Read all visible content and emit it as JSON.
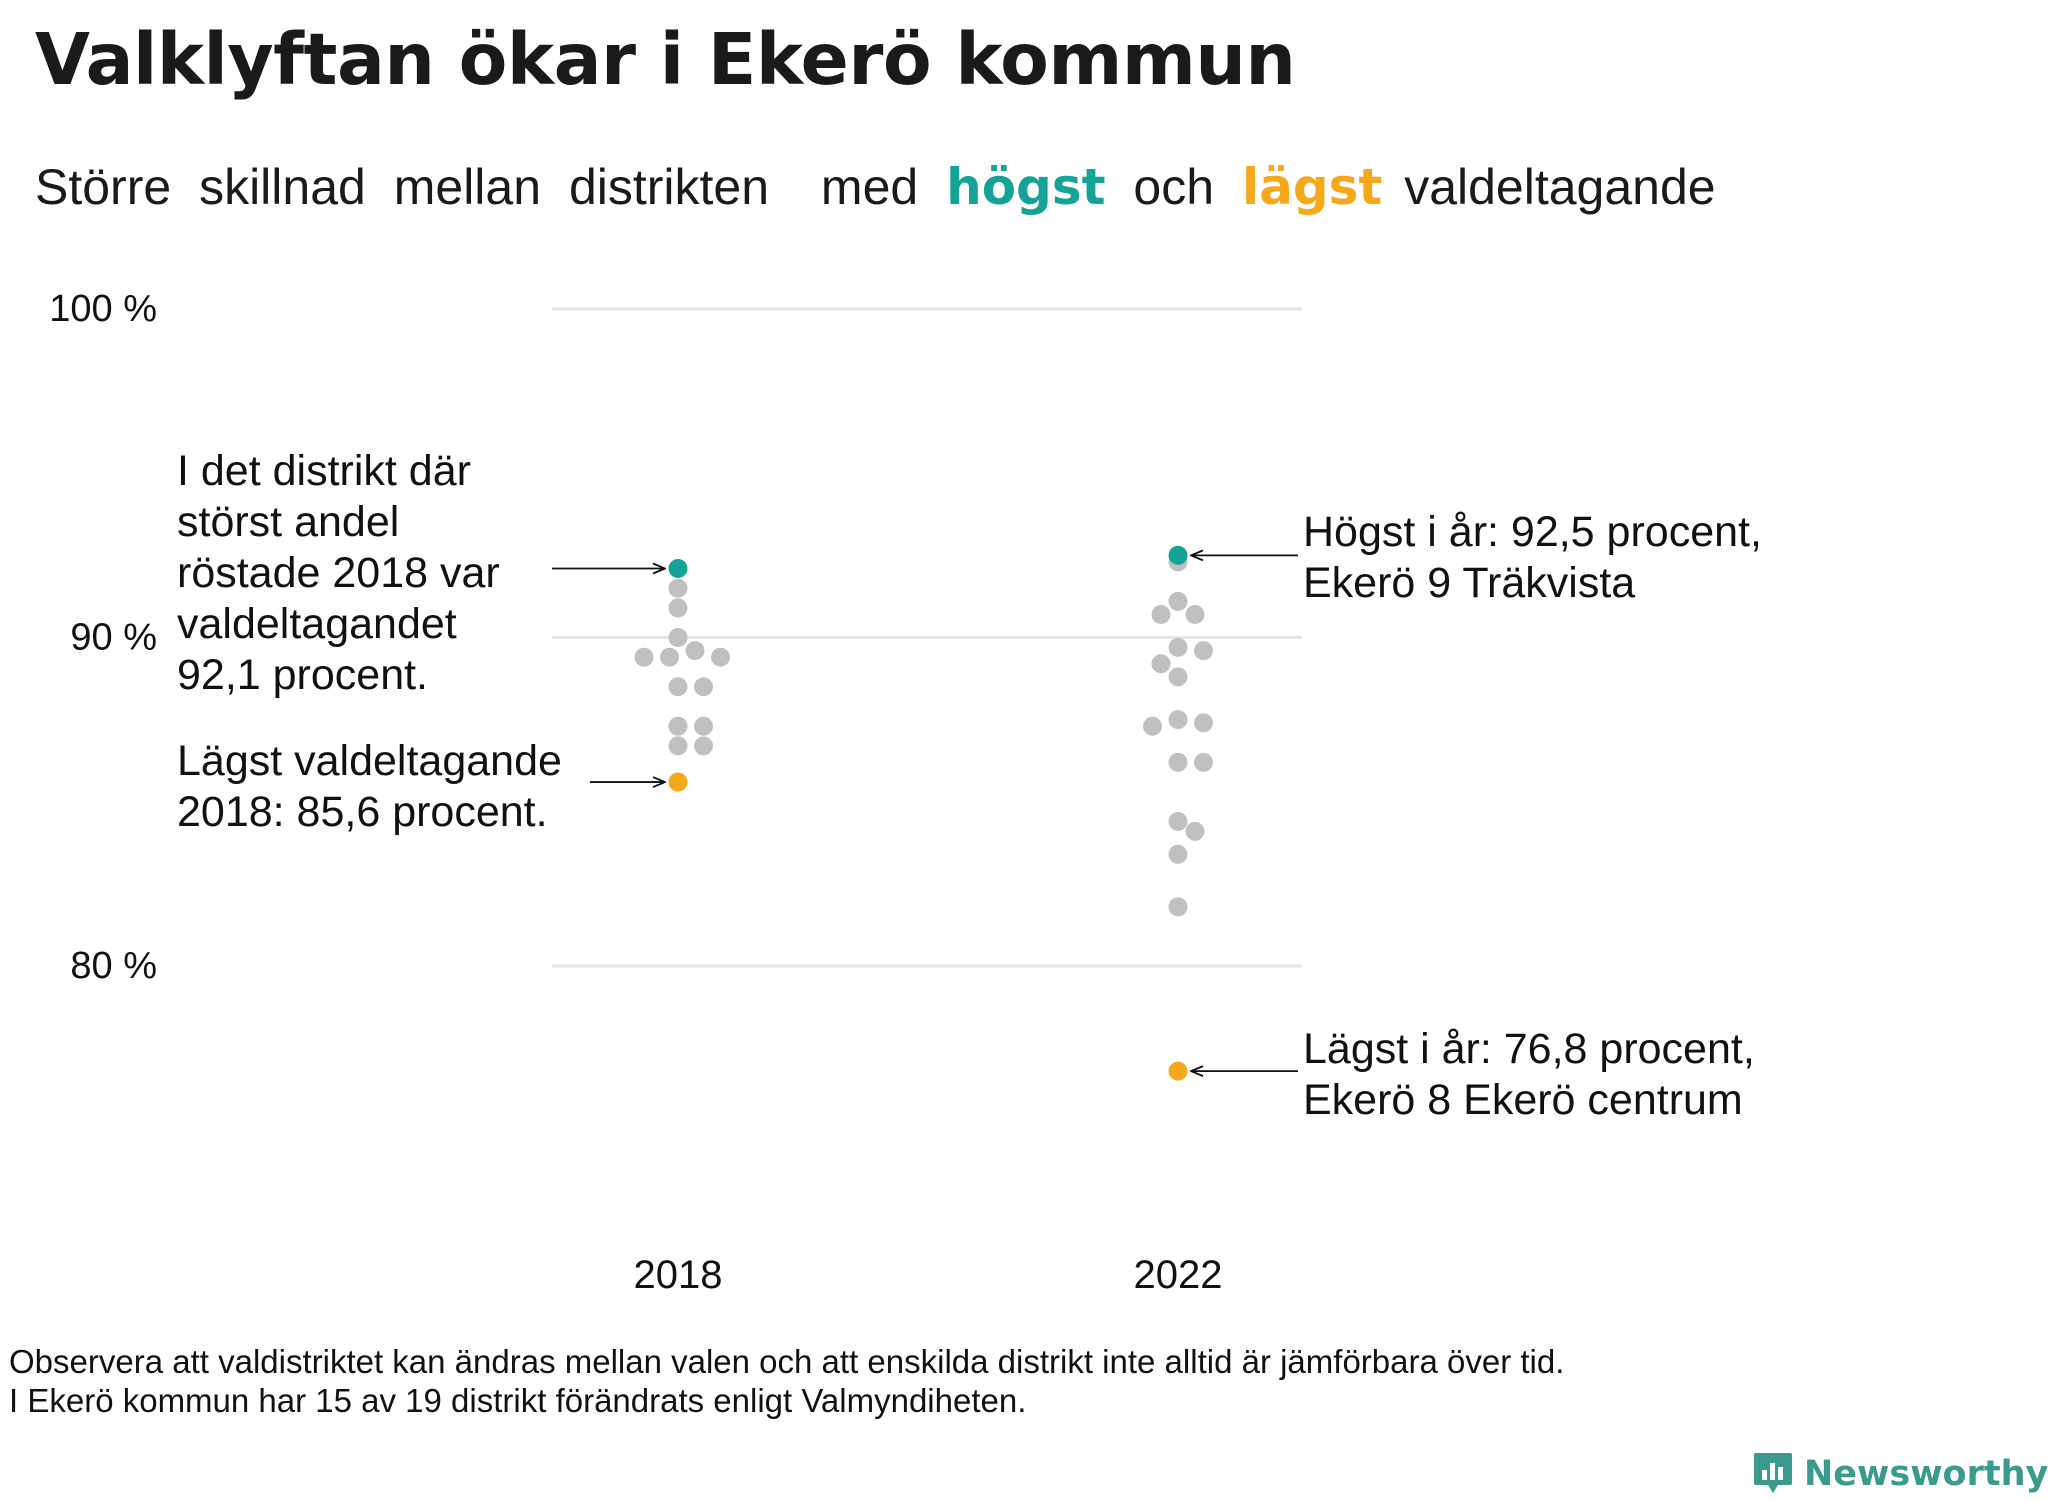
{
  "title": "Valklyftan ökar i Ekerö kommun",
  "subtitle": {
    "words": [
      "Större",
      "skillnad",
      "mellan",
      "distrikten",
      "med"
    ],
    "high_word": "högst",
    "and_word": "och",
    "low_word": "lägst",
    "tail": "valdeltagande"
  },
  "colors": {
    "high": "#14a396",
    "low": "#f5a81c",
    "other": "#c0c0c0",
    "grid": "#e6e6e6",
    "brand": "#3a9a8d"
  },
  "chart_data": {
    "type": "scatter",
    "categories": [
      "2018",
      "2022"
    ],
    "ylim": [
      70,
      100
    ],
    "yticks": [
      {
        "value": 100,
        "label": "100 %"
      },
      {
        "value": 90,
        "label": "90 %"
      },
      {
        "value": 80,
        "label": "80 %"
      }
    ],
    "grid": true,
    "series": [
      {
        "category": "2018",
        "highest": 92.1,
        "lowest": 85.6,
        "others": [
          91.5,
          90.9,
          90.0,
          89.6,
          89.4,
          89.4,
          89.4,
          88.5,
          88.5,
          87.3,
          87.3,
          86.7,
          86.7
        ]
      },
      {
        "category": "2022",
        "highest": 92.5,
        "lowest": 76.8,
        "others": [
          92.3,
          91.1,
          90.7,
          90.7,
          89.7,
          89.6,
          89.2,
          88.8,
          87.5,
          87.4,
          87.3,
          86.2,
          86.2,
          84.4,
          84.1,
          83.4,
          81.8
        ]
      }
    ],
    "annotations": {
      "high_2018": [
        "I det distrikt där",
        "störst andel",
        "röstade 2018 var",
        "valdeltagandet",
        "92,1 procent."
      ],
      "low_2018": [
        "Lägst valdeltagande",
        "2018: 85,6 procent."
      ],
      "high_2022": [
        "Högst i år: 92,5 procent,",
        "Ekerö 9 Träkvista"
      ],
      "low_2022": [
        "Lägst i år: 76,8 procent,",
        "Ekerö 8 Ekerö centrum"
      ]
    }
  },
  "footnote": {
    "line1": "Observera att valdistriktet kan ändras mellan valen och att enskilda distrikt inte alltid är jämförbara över tid.",
    "line2": "I Ekerö kommun har 15 av 19 distrikt förändrats enligt Valmyndiheten."
  },
  "brand": {
    "name": "Newsworthy",
    "icon": "newsworthy-logo-icon"
  }
}
